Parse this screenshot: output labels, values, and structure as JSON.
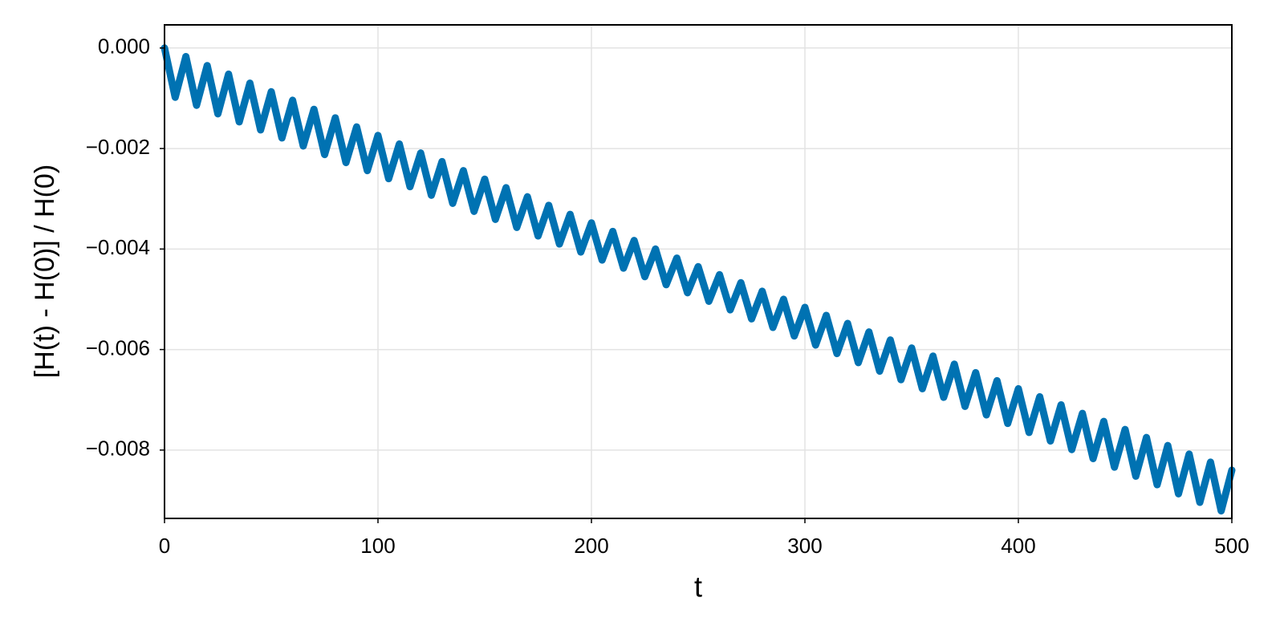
{
  "chart_data": {
    "type": "line",
    "xlabel": "t",
    "ylabel": "[H(t) - H(0)] / H(0)",
    "color": "#0072b2",
    "grid": true,
    "xlim": [
      0,
      500
    ],
    "ylim": [
      -0.00936,
      0.00046
    ],
    "xticks": [
      0,
      100,
      200,
      300,
      400,
      500
    ],
    "yticks": [
      {
        "value": 0,
        "label": "0.000"
      },
      {
        "value": -0.002,
        "label": "−0.002"
      },
      {
        "value": -0.004,
        "label": "−0.004"
      },
      {
        "value": -0.006,
        "label": "−0.006"
      },
      {
        "value": -0.008,
        "label": "−0.008"
      }
    ],
    "x": [
      0,
      5,
      10,
      15,
      20,
      25,
      30,
      35,
      40,
      45,
      50,
      55,
      60,
      65,
      70,
      75,
      80,
      85,
      90,
      95,
      100,
      105,
      110,
      115,
      120,
      125,
      130,
      135,
      140,
      145,
      150,
      155,
      160,
      165,
      170,
      175,
      180,
      185,
      190,
      195,
      200,
      205,
      210,
      215,
      220,
      225,
      230,
      235,
      240,
      245,
      250,
      255,
      260,
      265,
      270,
      275,
      280,
      285,
      290,
      295,
      300,
      305,
      310,
      315,
      320,
      325,
      330,
      335,
      340,
      345,
      350,
      355,
      360,
      365,
      370,
      375,
      380,
      385,
      390,
      395,
      400,
      405,
      410,
      415,
      420,
      425,
      430,
      435,
      440,
      445,
      450,
      455,
      460,
      465,
      470,
      475,
      480,
      485,
      490,
      495,
      500
    ],
    "values": [
      0,
      -0.00098,
      -0.00017,
      -0.00114,
      -0.00035,
      -0.00131,
      -0.00052,
      -0.00147,
      -0.0007,
      -0.00163,
      -0.00087,
      -0.00179,
      -0.00104,
      -0.00195,
      -0.00122,
      -0.00212,
      -0.00139,
      -0.00228,
      -0.00157,
      -0.00244,
      -0.00174,
      -0.0026,
      -0.00191,
      -0.00276,
      -0.00209,
      -0.00293,
      -0.00226,
      -0.00309,
      -0.00244,
      -0.00325,
      -0.00261,
      -0.00341,
      -0.00278,
      -0.00357,
      -0.00296,
      -0.00374,
      -0.00313,
      -0.0039,
      -0.00331,
      -0.00406,
      -0.00348,
      -0.00422,
      -0.00365,
      -0.00438,
      -0.00383,
      -0.00455,
      -0.004,
      -0.00471,
      -0.00418,
      -0.00487,
      -0.00435,
      -0.00504,
      -0.00451,
      -0.00521,
      -0.00467,
      -0.00539,
      -0.00484,
      -0.00556,
      -0.005,
      -0.00573,
      -0.00516,
      -0.00591,
      -0.00532,
      -0.00608,
      -0.00548,
      -0.00626,
      -0.00565,
      -0.00643,
      -0.00581,
      -0.0066,
      -0.00597,
      -0.00678,
      -0.00613,
      -0.00695,
      -0.00629,
      -0.00713,
      -0.00646,
      -0.0073,
      -0.00662,
      -0.00747,
      -0.00678,
      -0.00765,
      -0.00694,
      -0.00782,
      -0.0071,
      -0.00799,
      -0.00727,
      -0.00817,
      -0.00743,
      -0.00834,
      -0.00759,
      -0.00852,
      -0.00775,
      -0.00869,
      -0.00791,
      -0.00887,
      -0.00808,
      -0.00904,
      -0.00824,
      -0.00921,
      -0.0084
    ]
  }
}
